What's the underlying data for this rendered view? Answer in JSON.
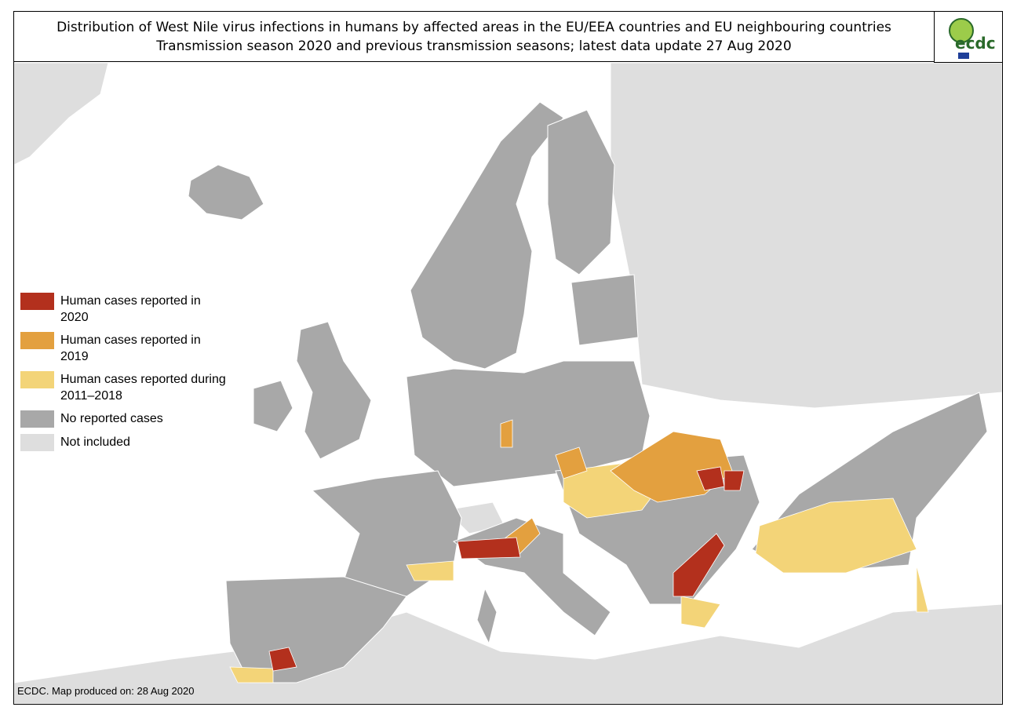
{
  "header": {
    "title": "Distribution of West Nile virus infections in humans by affected areas in the EU/EEA countries and EU neighbouring countries",
    "subtitle": "Transmission season 2020 and previous transmission seasons; latest data update 27 Aug 2020"
  },
  "logo": {
    "text": "ecdc"
  },
  "legend": {
    "items": [
      {
        "label": "Human cases reported in 2020",
        "color": "#b3301d"
      },
      {
        "label": "Human cases reported in 2019",
        "color": "#e3a03f"
      },
      {
        "label": "Human cases reported during 2011–2018",
        "color": "#f3d478"
      },
      {
        "label": "No reported cases",
        "color": "#a8a8a8"
      },
      {
        "label": "Not included",
        "color": "#dedede"
      }
    ]
  },
  "footer": {
    "note": "ECDC. Map produced on: 28 Aug 2020"
  }
}
